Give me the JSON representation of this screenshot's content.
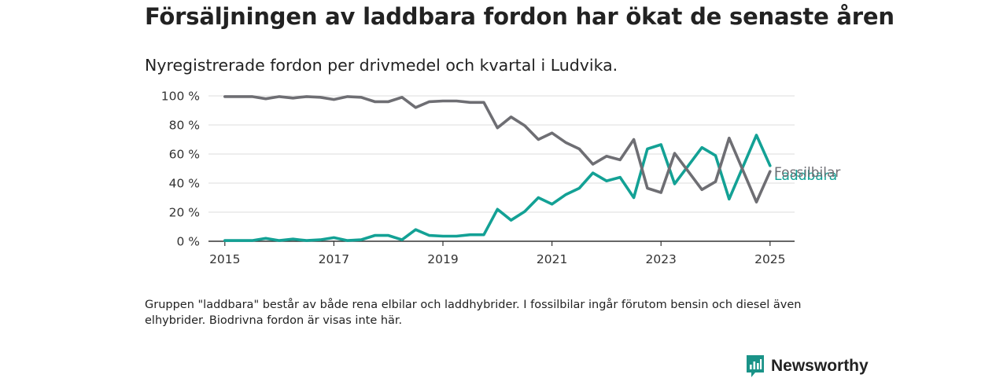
{
  "header": {
    "title": "Försäljningen av laddbara fordon har ökat de senaste åren",
    "subtitle": "Nyregistrerade fordon per drivmedel och kvartal i Ludvika."
  },
  "footnote": "Gruppen \"laddbara\" består av både rena elbilar och laddhybrider. I fossilbilar ingår förutom bensin och diesel även elhybrider. Biodrivna fordon är visas inte här.",
  "brand": {
    "name": "Newsworthy",
    "icon": "newsworthy-logo-icon"
  },
  "colors": {
    "fossil": "#6e6e73",
    "laddbara": "#13a195",
    "brand": "#1a9388",
    "grid": "#dddddd",
    "axis": "#333333"
  },
  "chart_data": {
    "type": "line",
    "x_unit": "year (quarterly observations)",
    "xlim": [
      2014.7,
      2025.45
    ],
    "ylim": [
      0,
      100
    ],
    "y_ticks": [
      {
        "value": 0,
        "label": "0 %"
      },
      {
        "value": 20,
        "label": "20 %"
      },
      {
        "value": 40,
        "label": "40 %"
      },
      {
        "value": 60,
        "label": "60 %"
      },
      {
        "value": 80,
        "label": "80 %"
      },
      {
        "value": 100,
        "label": "100 %"
      }
    ],
    "x_ticks": [
      {
        "value": 2015,
        "label": "2015"
      },
      {
        "value": 2017,
        "label": "2017"
      },
      {
        "value": 2019,
        "label": "2019"
      },
      {
        "value": 2021,
        "label": "2021"
      },
      {
        "value": 2023,
        "label": "2023"
      },
      {
        "value": 2025,
        "label": "2025"
      }
    ],
    "x": [
      2015,
      2015.25,
      2015.5,
      2015.75,
      2016,
      2016.25,
      2016.5,
      2016.75,
      2017,
      2017.25,
      2017.5,
      2017.75,
      2018,
      2018.25,
      2018.5,
      2018.75,
      2019,
      2019.25,
      2019.5,
      2019.75,
      2020,
      2020.25,
      2020.5,
      2020.75,
      2021,
      2021.25,
      2021.5,
      2021.75,
      2022,
      2022.25,
      2022.5,
      2022.75,
      2023,
      2023.25,
      2023.5,
      2023.75,
      2024,
      2024.25,
      2024.5,
      2024.75,
      2025
    ],
    "series": [
      {
        "name": "Fossilbilar",
        "color": "#6e6e73",
        "values": [
          99.5,
          99.5,
          99.5,
          98,
          99.5,
          98.5,
          99.5,
          99,
          97.5,
          99.5,
          99,
          96,
          96,
          99,
          92,
          96,
          96.5,
          96.5,
          95.5,
          95.5,
          78,
          85.5,
          79.5,
          70,
          74.5,
          68,
          63.5,
          53,
          58.5,
          56,
          70,
          36.5,
          33.5,
          60.5,
          48,
          35.5,
          41,
          71,
          49,
          27,
          48
        ]
      },
      {
        "name": "Laddbara",
        "color": "#13a195",
        "values": [
          0.5,
          0.5,
          0.5,
          2,
          0.5,
          1.5,
          0.5,
          1,
          2.5,
          0.5,
          1,
          4,
          4,
          1,
          8,
          4,
          3.5,
          3.5,
          4.5,
          4.5,
          22,
          14.5,
          20.5,
          30,
          25.5,
          32,
          36.5,
          47,
          41.5,
          44,
          30,
          63.5,
          66.5,
          39.5,
          52,
          64.5,
          59,
          29,
          51,
          73,
          52
        ]
      }
    ],
    "end_labels": [
      "Fossilbilar",
      "Laddbara"
    ],
    "grid": true,
    "legend": "none (end-of-line labels)"
  }
}
